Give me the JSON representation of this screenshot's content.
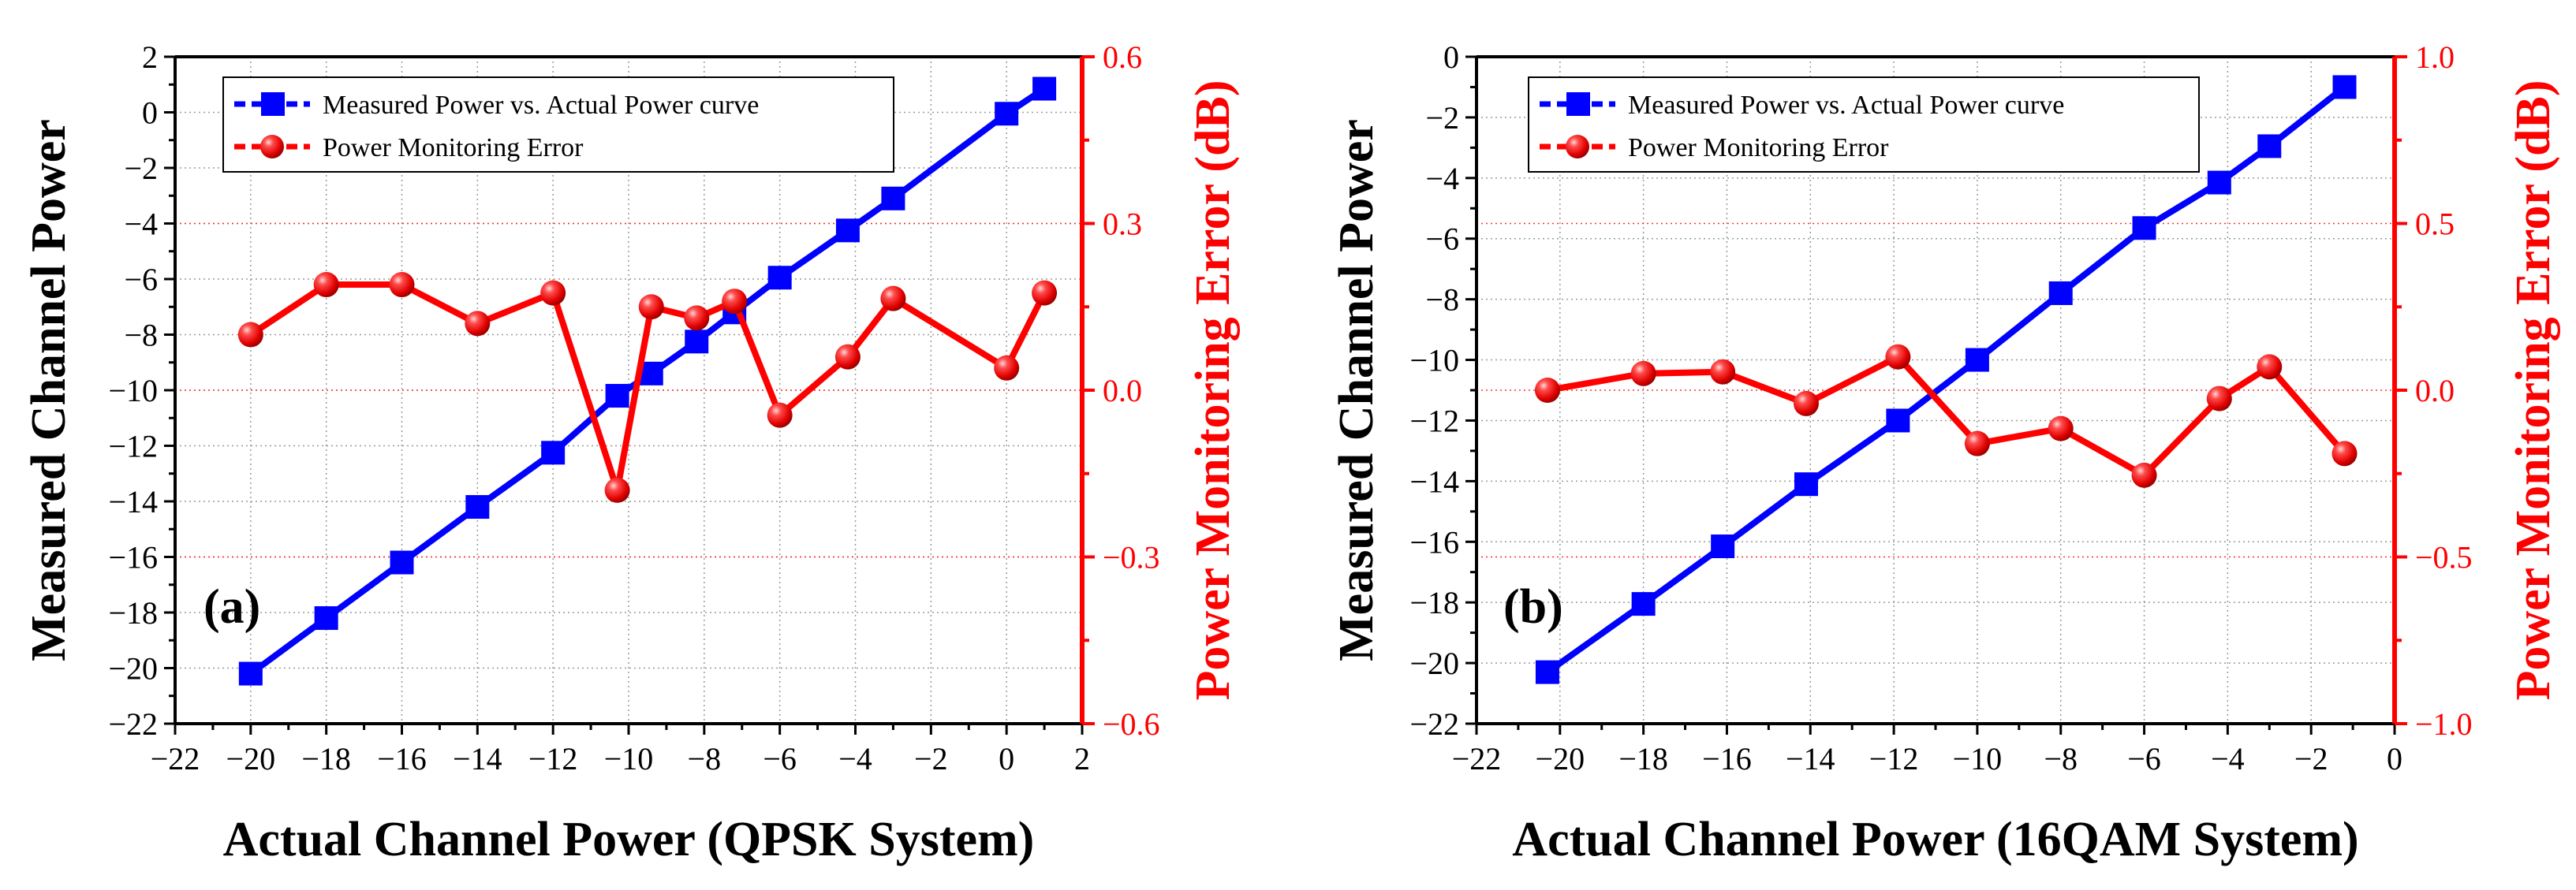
{
  "chart_data": [
    {
      "type": "line",
      "panel_label": "(a)",
      "xlabel": "Actual Channel Power (QPSK System)",
      "ylabel": "Measured Channel Power",
      "y2label": "Power Monitoring Error (dB)",
      "xlim": [
        -22,
        2
      ],
      "ylim": [
        -22,
        2
      ],
      "y2lim": [
        -0.6,
        0.6
      ],
      "xticks": [
        -22,
        -20,
        -18,
        -16,
        -14,
        -12,
        -10,
        -8,
        -6,
        -4,
        -2,
        0,
        2
      ],
      "yticks": [
        -22,
        -20,
        -18,
        -16,
        -14,
        -12,
        -10,
        -8,
        -6,
        -4,
        -2,
        0,
        2
      ],
      "y2ticks": [
        -0.6,
        -0.3,
        0.0,
        0.3,
        0.6
      ],
      "xtick_labels": [
        "−22",
        "−20",
        "−18",
        "−16",
        "−14",
        "−12",
        "−10",
        "−8",
        "−6",
        "−4",
        "−2",
        "0",
        "2"
      ],
      "ytick_labels": [
        "−22",
        "−20",
        "−18",
        "−16",
        "−14",
        "−12",
        "−10",
        "−8",
        "−6",
        "−4",
        "−2",
        "0",
        "2"
      ],
      "y2tick_labels": [
        "−0.6",
        "−0.3",
        "0.0",
        "0.3",
        "0.6"
      ],
      "legend_position": "top-left",
      "grid": "dotted",
      "series": [
        {
          "name": "Measured Power vs. Actual Power curve",
          "axis": "left",
          "color": "#0000ff",
          "marker": "square",
          "x": [
            -20,
            -18,
            -16,
            -14,
            -12,
            -10.3,
            -9.4,
            -8.2,
            -7.2,
            -6,
            -4.2,
            -3,
            0,
            1
          ],
          "y": [
            -20.2,
            -18.2,
            -16.2,
            -14.2,
            -12.25,
            -10.2,
            -9.4,
            -8.25,
            -7.2,
            -5.95,
            -4.25,
            -3.1,
            -0.05,
            0.85
          ]
        },
        {
          "name": "Power Monitoring Error",
          "axis": "right",
          "color": "#ff0000",
          "marker": "sphere",
          "x": [
            -20,
            -18,
            -16,
            -14,
            -12,
            -10.3,
            -9.4,
            -8.2,
            -7.2,
            -6,
            -4.2,
            -3,
            0,
            1
          ],
          "y": [
            0.1,
            0.19,
            0.19,
            0.12,
            0.175,
            -0.18,
            0.15,
            0.13,
            0.16,
            -0.045,
            0.06,
            0.165,
            0.04,
            0.175
          ]
        }
      ]
    },
    {
      "type": "line",
      "panel_label": "(b)",
      "xlabel": "Actual Channel Power (16QAM System)",
      "ylabel": "Measured Channel Power",
      "y2label": "Power Monitoring Error (dB)",
      "xlim": [
        -22,
        0
      ],
      "ylim": [
        -22,
        0
      ],
      "y2lim": [
        -1.0,
        1.0
      ],
      "xticks": [
        -22,
        -20,
        -18,
        -16,
        -14,
        -12,
        -10,
        -8,
        -6,
        -4,
        -2,
        0
      ],
      "yticks": [
        -22,
        -20,
        -18,
        -16,
        -14,
        -12,
        -10,
        -8,
        -6,
        -4,
        -2,
        0
      ],
      "y2ticks": [
        -1.0,
        -0.5,
        0.0,
        0.5,
        1.0
      ],
      "xtick_labels": [
        "−22",
        "−20",
        "−18",
        "−16",
        "−14",
        "−12",
        "−10",
        "−8",
        "−6",
        "−4",
        "−2",
        "0"
      ],
      "ytick_labels": [
        "−22",
        "−20",
        "−18",
        "−16",
        "−14",
        "−12",
        "−10",
        "−8",
        "−6",
        "−4",
        "−2",
        "0"
      ],
      "y2tick_labels": [
        "−1.0",
        "−0.5",
        "0.0",
        "0.5",
        "1.0"
      ],
      "legend_position": "top-left",
      "grid": "dotted",
      "series": [
        {
          "name": "Measured Power vs. Actual Power curve",
          "axis": "left",
          "color": "#0000ff",
          "marker": "square",
          "x": [
            -20.3,
            -18,
            -16.1,
            -14.1,
            -11.9,
            -10,
            -8,
            -6,
            -4.2,
            -3,
            -1.2
          ],
          "y": [
            -20.3,
            -18.05,
            -16.15,
            -14.1,
            -12,
            -10,
            -7.8,
            -5.65,
            -4.15,
            -2.95,
            -1
          ]
        },
        {
          "name": "Power Monitoring Error",
          "axis": "right",
          "color": "#ff0000",
          "marker": "sphere",
          "x": [
            -20.3,
            -18,
            -16.1,
            -14.1,
            -11.9,
            -10,
            -8,
            -6,
            -4.2,
            -3,
            -1.2
          ],
          "y": [
            0.0,
            0.05,
            0.055,
            -0.04,
            0.1,
            -0.16,
            -0.115,
            -0.255,
            -0.025,
            0.07,
            -0.19
          ]
        }
      ]
    }
  ]
}
